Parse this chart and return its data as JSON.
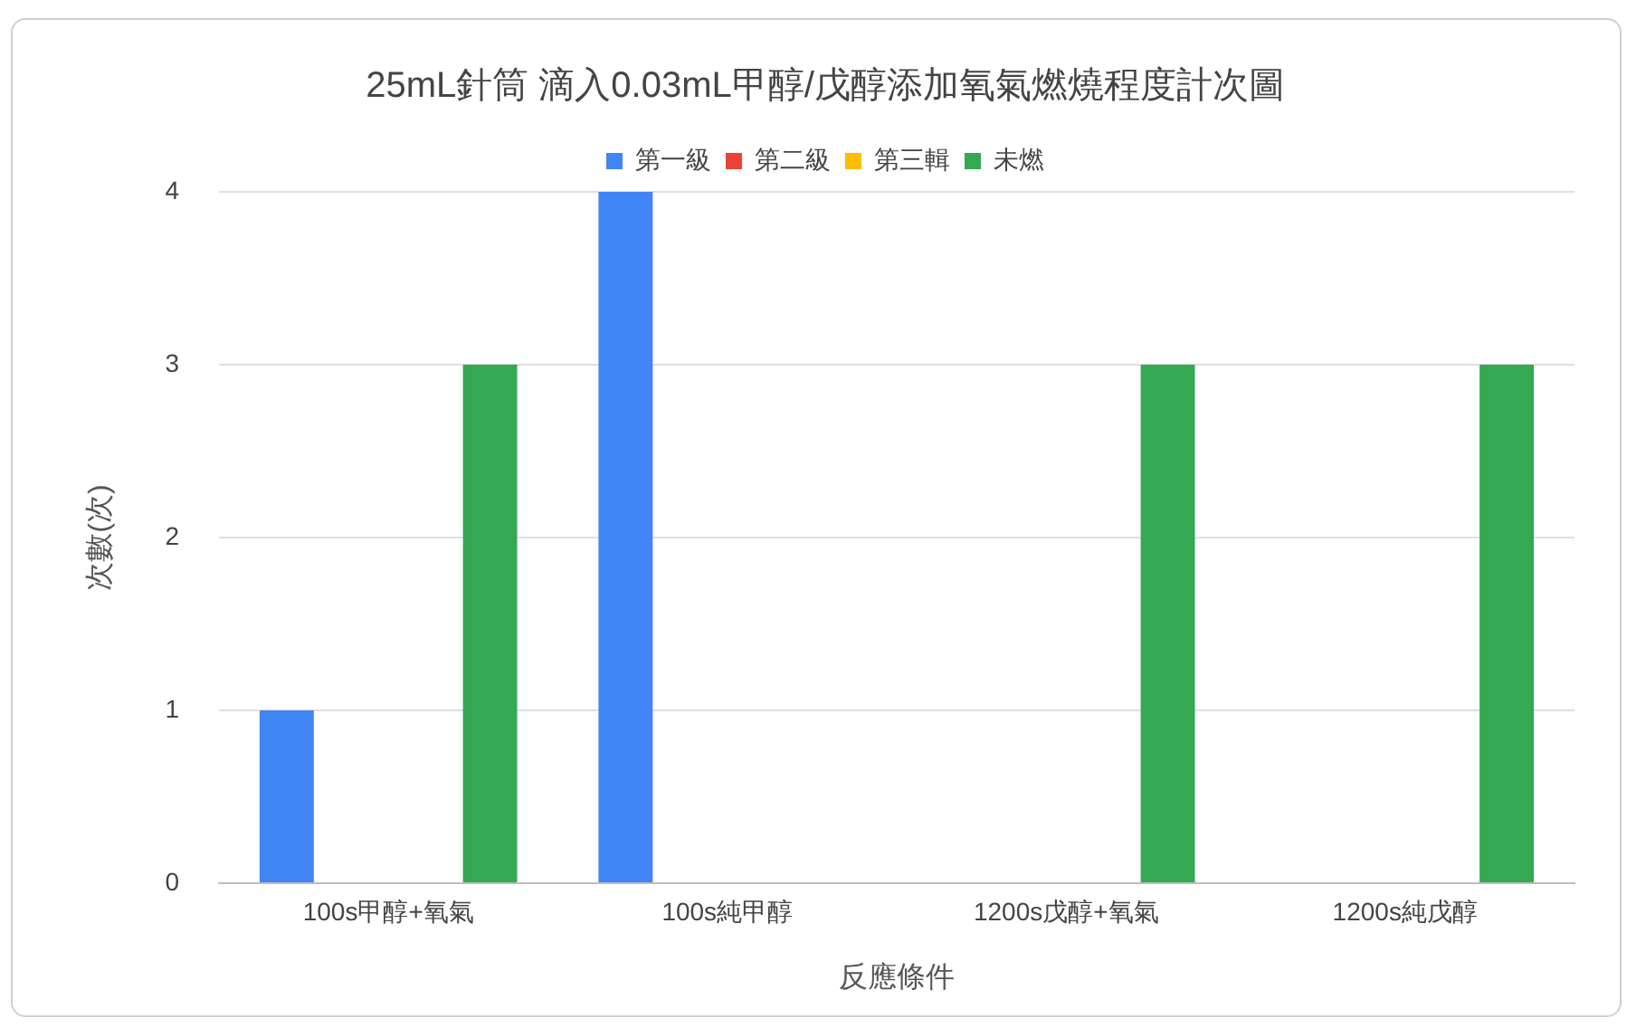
{
  "chart_data": {
    "type": "bar",
    "title": "25mL針筒 滴入0.03mL甲醇/戊醇添加氧氣燃燒程度計次圖",
    "xlabel": "反應條件",
    "ylabel": "次數(次)",
    "categories": [
      "100s甲醇+氧氣",
      "100s純甲醇",
      "1200s戊醇+氧氣",
      "1200s純戊醇"
    ],
    "series": [
      {
        "name": "第一級",
        "color": "#4285f4",
        "values": [
          1,
          4,
          0,
          0
        ]
      },
      {
        "name": "第二級",
        "color": "#ea4335",
        "values": [
          0,
          0,
          0,
          0
        ]
      },
      {
        "name": "第三輯",
        "color": "#fbbc04",
        "values": [
          0,
          0,
          0,
          0
        ]
      },
      {
        "name": "未燃",
        "color": "#34a853",
        "values": [
          3,
          0,
          3,
          3
        ]
      }
    ],
    "ylim": [
      0,
      4
    ],
    "yticks": [
      0,
      1,
      2,
      3,
      4
    ],
    "grid": "y",
    "legend": "top"
  }
}
